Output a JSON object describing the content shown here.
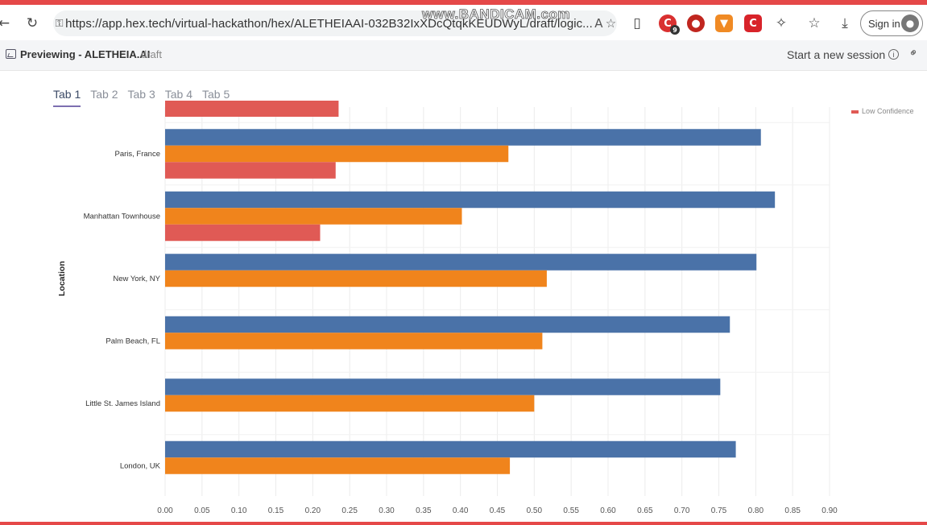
{
  "browser": {
    "url": "https://app.hex.tech/virtual-hackathon/hex/ALETHEIAAI-032B32IxXDcQtqkKEUDWyL/draft/logic...",
    "watermark": "www.BANDICAM.com",
    "sign_in_label": "Sign in",
    "ext_badge": "9",
    "icons": [
      "back-icon",
      "reload-icon",
      "lock-icon",
      "read-aloud-icon",
      "star-icon",
      "bookmark-icon",
      "extension-icon",
      "puzzle-icon",
      "favorites-icon",
      "download-icon",
      "avatar-icon"
    ],
    "accent": "#e54848"
  },
  "app": {
    "title": "Previewing - ALETHEIA.AI",
    "status": "draft",
    "start_session": "Start a new session",
    "info_glyph": "i"
  },
  "tabs": [
    {
      "label": "Tab 1",
      "active": true
    },
    {
      "label": "Tab 2",
      "active": false
    },
    {
      "label": "Tab 3",
      "active": false
    },
    {
      "label": "Tab 4",
      "active": false
    },
    {
      "label": "Tab 5",
      "active": false
    }
  ],
  "chart_data": {
    "type": "bar",
    "orientation": "horizontal",
    "ylabel": "Location",
    "xlabel": "",
    "xlim": [
      0,
      0.9
    ],
    "xticks": [
      "0.00",
      "0.05",
      "0.10",
      "0.15",
      "0.20",
      "0.25",
      "0.30",
      "0.35",
      "0.40",
      "0.45",
      "0.50",
      "0.55",
      "0.60",
      "0.65",
      "0.70",
      "0.75",
      "0.80",
      "0.85",
      "0.90"
    ],
    "grid": true,
    "legend_placement": "top-right",
    "legend_partial": "Low Confidence",
    "categories": [
      "Paris, France",
      "Manhattan Townhouse",
      "New York, NY",
      "Palm Beach, FL",
      "Little St. James Island",
      "London, UK"
    ],
    "partial_top_value": 0.235,
    "series": [
      {
        "color": "#4a72a8",
        "values": [
          0.807,
          0.826,
          0.801,
          0.765,
          0.752,
          0.773
        ]
      },
      {
        "color": "#f0841c",
        "values": [
          0.465,
          0.402,
          0.517,
          0.511,
          0.5,
          0.467
        ]
      },
      {
        "name": "Low Confidence",
        "color": "#e05a55",
        "values": [
          0.231,
          0.21,
          null,
          null,
          null,
          null
        ]
      }
    ]
  }
}
